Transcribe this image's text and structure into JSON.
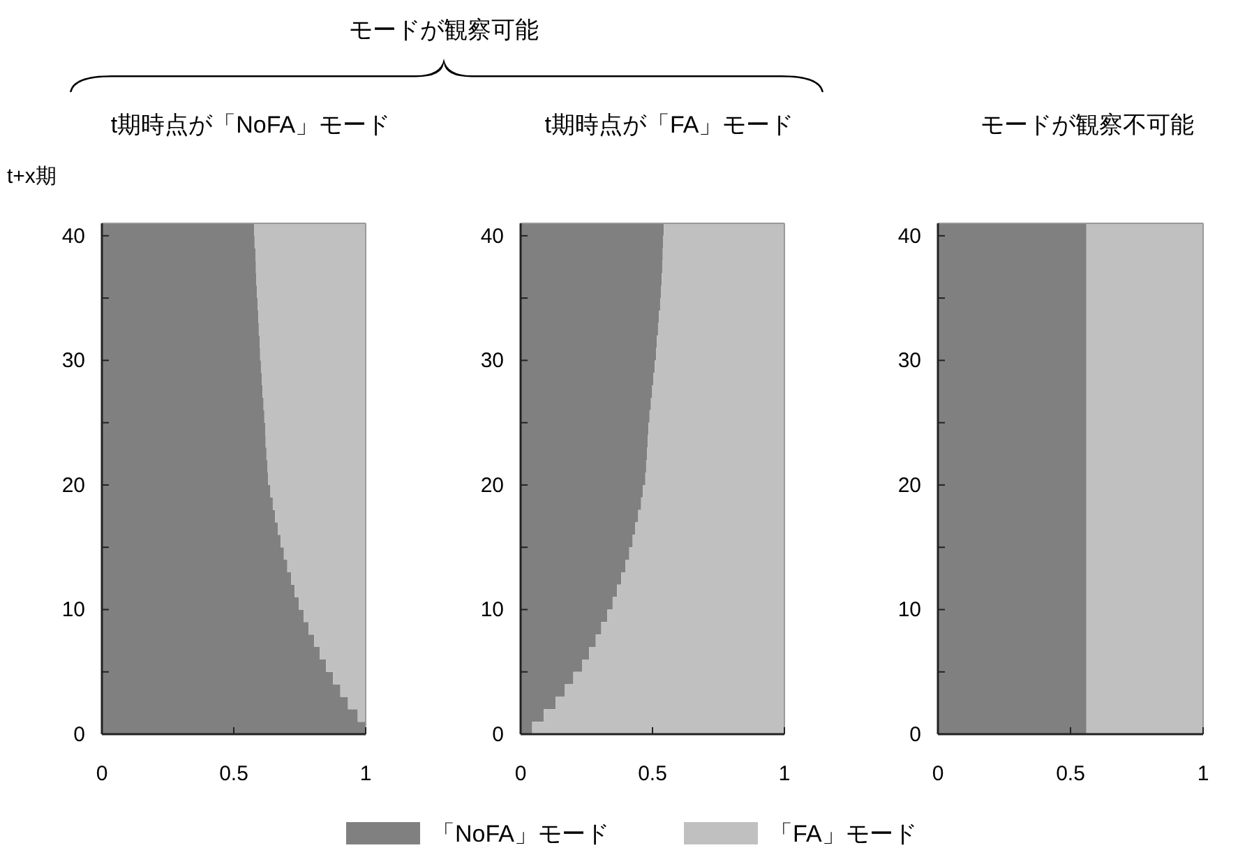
{
  "chart_data": [
    {
      "type": "area",
      "orientation": "horizontal",
      "stacked": true,
      "title": "t期時点が「NoFA」モード",
      "ylabel": "t+x期",
      "annotations": [
        "モードが観察可能"
      ],
      "legend": "bottom",
      "x": [
        0,
        1,
        2,
        3,
        4,
        5,
        6,
        7,
        8,
        9,
        10,
        11,
        12,
        13,
        14,
        15,
        16,
        17,
        18,
        19,
        20,
        21,
        22,
        23,
        24,
        25,
        26,
        27,
        28,
        29,
        30,
        31,
        32,
        33,
        34,
        35,
        36,
        37,
        38,
        39,
        40,
        41
      ],
      "xlim": [
        0,
        1
      ],
      "xticks": [
        0,
        0.5,
        1
      ],
      "ylim": [
        0,
        41
      ],
      "yticks": [
        0,
        {
          "value": 5,
          "label": null
        },
        10,
        {
          "value": 15,
          "label": null
        },
        20,
        {
          "value": 25,
          "label": null
        },
        30,
        {
          "value": 35,
          "label": null
        },
        40
      ],
      "series": [
        {
          "name": "「NoFA」モード",
          "color": "#808080",
          "values": [
            1.0,
            0.97,
            0.933,
            0.904,
            0.876,
            0.85,
            0.826,
            0.805,
            0.784,
            0.765,
            0.747,
            0.731,
            0.717,
            0.703,
            0.69,
            0.678,
            0.667,
            0.657,
            0.648,
            0.639,
            0.63,
            0.627,
            0.624,
            0.621,
            0.619,
            0.616,
            0.613,
            0.609,
            0.606,
            0.603,
            0.6,
            0.598,
            0.595,
            0.593,
            0.59,
            0.588,
            0.586,
            0.584,
            0.582,
            0.579,
            0.577,
            0.577
          ]
        },
        {
          "name": "「FA」モード",
          "color": "#c0c0c0",
          "values": [
            0,
            0.03,
            0.067,
            0.096,
            0.124,
            0.15,
            0.174,
            0.195,
            0.216,
            0.235,
            0.253,
            0.269,
            0.283,
            0.297,
            0.31,
            0.322,
            0.333,
            0.343,
            0.352,
            0.361,
            0.37,
            0.373,
            0.376,
            0.379,
            0.381,
            0.384,
            0.387,
            0.391,
            0.394,
            0.397,
            0.4,
            0.402,
            0.405,
            0.407,
            0.41,
            0.412,
            0.414,
            0.416,
            0.418,
            0.421,
            0.423,
            0.423
          ]
        }
      ]
    },
    {
      "type": "area",
      "orientation": "horizontal",
      "stacked": true,
      "title": "t期時点が「FA」モード",
      "x": [
        0,
        1,
        2,
        3,
        4,
        5,
        6,
        7,
        8,
        9,
        10,
        11,
        12,
        13,
        14,
        15,
        16,
        17,
        18,
        19,
        20,
        21,
        22,
        23,
        24,
        25,
        26,
        27,
        28,
        29,
        30,
        31,
        32,
        33,
        34,
        35,
        36,
        37,
        38,
        39,
        40,
        41
      ],
      "xlim": [
        0,
        1
      ],
      "xticks": [
        0,
        0.5,
        1
      ],
      "ylim": [
        0,
        41
      ],
      "yticks": [
        0,
        {
          "value": 5,
          "label": null
        },
        10,
        {
          "value": 15,
          "label": null
        },
        20,
        {
          "value": 25,
          "label": null
        },
        30,
        {
          "value": 35,
          "label": null
        },
        40
      ],
      "series": [
        {
          "color": "#808080",
          "values": [
            0.044,
            0.088,
            0.133,
            0.168,
            0.2,
            0.234,
            0.26,
            0.285,
            0.306,
            0.329,
            0.349,
            0.366,
            0.382,
            0.398,
            0.412,
            0.425,
            0.435,
            0.446,
            0.457,
            0.464,
            0.473,
            0.476,
            0.479,
            0.482,
            0.485,
            0.489,
            0.494,
            0.499,
            0.504,
            0.509,
            0.514,
            0.517,
            0.521,
            0.525,
            0.529,
            0.533,
            0.535,
            0.537,
            0.539,
            0.541,
            0.543,
            0.543
          ]
        },
        {
          "color": "#c0c0c0",
          "values": [
            0.956,
            0.912,
            0.867,
            0.832,
            0.8,
            0.766,
            0.74,
            0.715,
            0.694,
            0.671,
            0.651,
            0.634,
            0.618,
            0.602,
            0.588,
            0.575,
            0.565,
            0.554,
            0.543,
            0.536,
            0.527,
            0.524,
            0.521,
            0.518,
            0.515,
            0.511,
            0.506,
            0.501,
            0.496,
            0.491,
            0.486,
            0.483,
            0.479,
            0.475,
            0.471,
            0.467,
            0.465,
            0.463,
            0.461,
            0.459,
            0.457,
            0.457
          ]
        }
      ]
    },
    {
      "type": "area",
      "orientation": "horizontal",
      "stacked": true,
      "title": "モードが観察不可能",
      "x": [
        0,
        1,
        2,
        3,
        4,
        5,
        6,
        7,
        8,
        9,
        10,
        11,
        12,
        13,
        14,
        15,
        16,
        17,
        18,
        19,
        20,
        21,
        22,
        23,
        24,
        25,
        26,
        27,
        28,
        29,
        30,
        31,
        32,
        33,
        34,
        35,
        36,
        37,
        38,
        39,
        40,
        41
      ],
      "xlim": [
        0,
        1
      ],
      "xticks": [
        0,
        0.5,
        1
      ],
      "ylim": [
        0,
        41
      ],
      "yticks": [
        0,
        {
          "value": 5,
          "label": null
        },
        10,
        {
          "value": 15,
          "label": null
        },
        20,
        {
          "value": 25,
          "label": null
        },
        30,
        {
          "value": 35,
          "label": null
        },
        40
      ],
      "series": [
        {
          "color": "#808080",
          "values": [
            0.56,
            0.56,
            0.56,
            0.56,
            0.56,
            0.56,
            0.56,
            0.56,
            0.56,
            0.56,
            0.56,
            0.56,
            0.56,
            0.56,
            0.56,
            0.56,
            0.56,
            0.56,
            0.56,
            0.56,
            0.56,
            0.56,
            0.56,
            0.56,
            0.56,
            0.56,
            0.56,
            0.56,
            0.56,
            0.56,
            0.56,
            0.56,
            0.56,
            0.56,
            0.56,
            0.56,
            0.56,
            0.56,
            0.56,
            0.56,
            0.56,
            0.56
          ]
        },
        {
          "color": "#c0c0c0",
          "values": [
            0.44,
            0.44,
            0.44,
            0.44,
            0.44,
            0.44,
            0.44,
            0.44,
            0.44,
            0.44,
            0.44,
            0.44,
            0.44,
            0.44,
            0.44,
            0.44,
            0.44,
            0.44,
            0.44,
            0.44,
            0.44,
            0.44,
            0.44,
            0.44,
            0.44,
            0.44,
            0.44,
            0.44,
            0.44,
            0.44,
            0.44,
            0.44,
            0.44,
            0.44,
            0.44,
            0.44,
            0.44,
            0.44,
            0.44,
            0.44,
            0.44,
            0.44
          ]
        }
      ]
    }
  ]
}
